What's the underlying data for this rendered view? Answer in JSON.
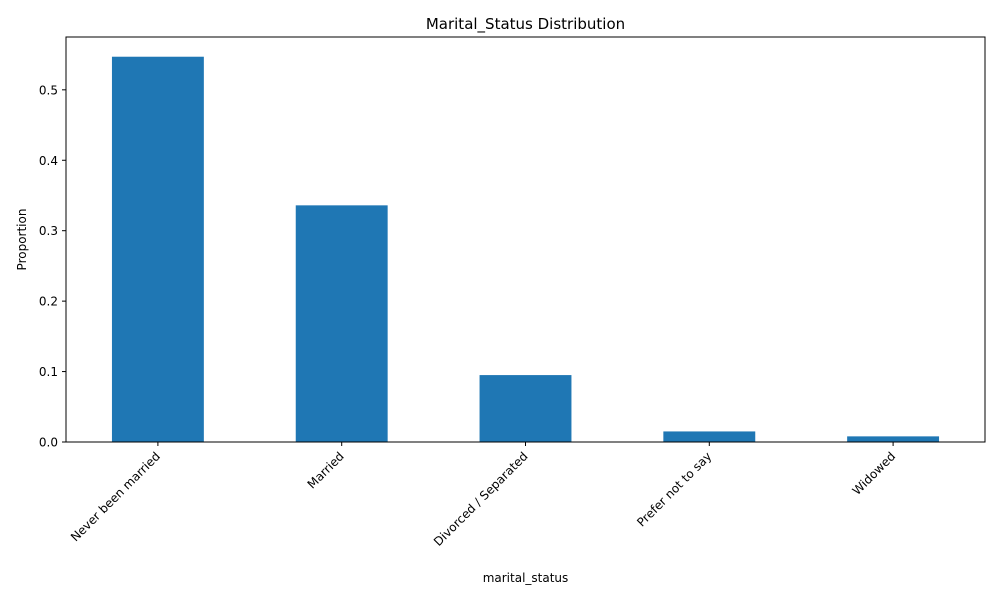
{
  "chart_data": {
    "type": "bar",
    "title": "Marital_Status Distribution",
    "xlabel": "marital_status",
    "ylabel": "Proportion",
    "categories": [
      "Never been married",
      "Married",
      "Divorced / Separated",
      "Prefer not to say",
      "Widowed"
    ],
    "values": [
      0.547,
      0.336,
      0.095,
      0.015,
      0.008
    ],
    "ylim": [
      0,
      0.575
    ],
    "yticks": [
      0.0,
      0.1,
      0.2,
      0.3,
      0.4,
      0.5
    ],
    "ytick_labels": [
      "0.0",
      "0.1",
      "0.2",
      "0.3",
      "0.4",
      "0.5"
    ],
    "bar_color": "#1f77b4",
    "grid": false,
    "legend": false
  }
}
